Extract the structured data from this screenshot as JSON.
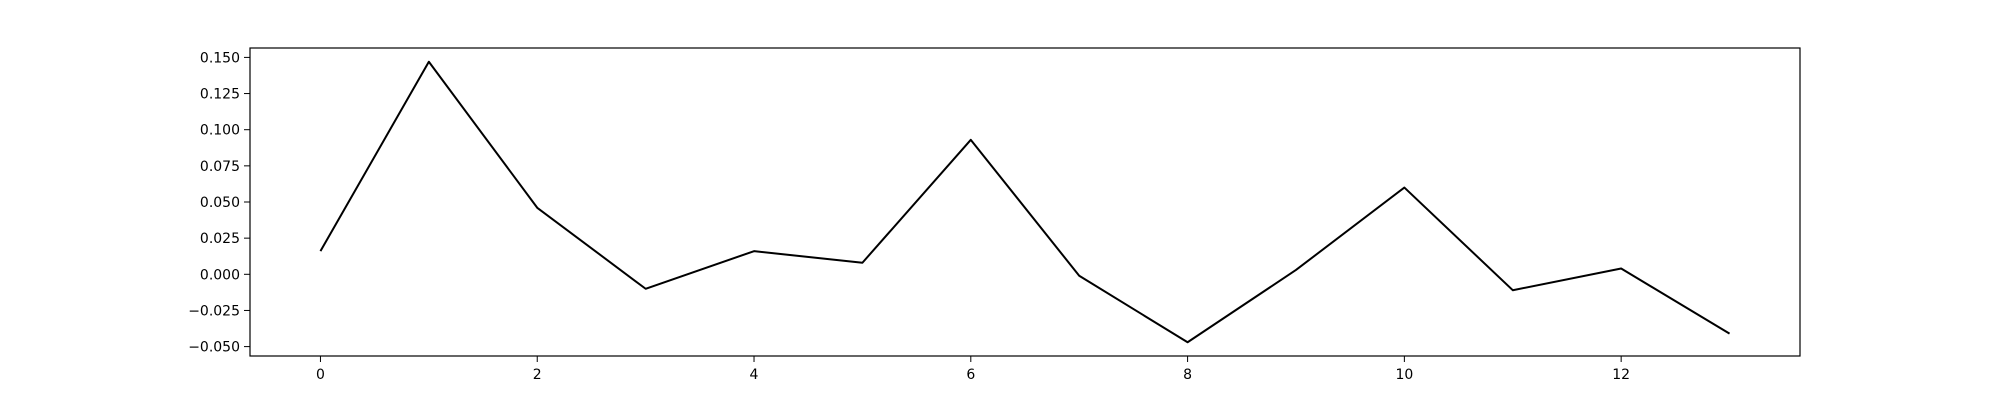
{
  "chart_data": {
    "type": "line",
    "title": "",
    "xlabel": "",
    "ylabel": "",
    "x": [
      0,
      1,
      2,
      3,
      4,
      5,
      6,
      7,
      8,
      9,
      10,
      11,
      12,
      13
    ],
    "series": [
      {
        "values": [
          0.016,
          0.147,
          0.046,
          -0.01,
          0.016,
          0.008,
          0.093,
          -0.001,
          -0.047,
          0.003,
          0.06,
          -0.011,
          0.004,
          -0.041
        ],
        "color": "#000000"
      }
    ],
    "xlim": [
      -0.65,
      13.65
    ],
    "ylim": [
      -0.0565,
      0.1565
    ],
    "xticks": [
      0,
      2,
      4,
      6,
      8,
      10,
      12
    ],
    "xtick_labels": [
      "0",
      "2",
      "4",
      "6",
      "8",
      "10",
      "12"
    ],
    "yticks": [
      -0.05,
      -0.025,
      0.0,
      0.025,
      0.05,
      0.075,
      0.1,
      0.125,
      0.15
    ],
    "ytick_labels": [
      "−0.050",
      "−0.025",
      "0.000",
      "0.025",
      "0.050",
      "0.075",
      "0.100",
      "0.125",
      "0.150"
    ],
    "grid": false,
    "legend": false
  }
}
